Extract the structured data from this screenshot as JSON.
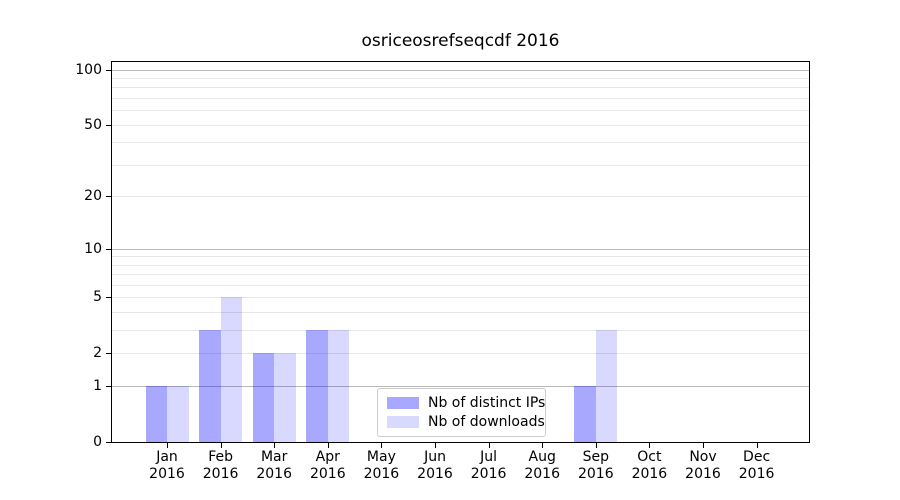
{
  "title": "osriceosrefseqcdf 2016",
  "chart_data": {
    "type": "bar",
    "title": "osriceosrefseqcdf 2016",
    "categories": [
      "Jan",
      "Feb",
      "Mar",
      "Apr",
      "May",
      "Jun",
      "Jul",
      "Aug",
      "Sep",
      "Oct",
      "Nov",
      "Dec"
    ],
    "category_year": "2016",
    "series": [
      {
        "name": "Nb of distinct IPs",
        "color": "rgba(0,0,255,0.34)",
        "values": [
          1,
          3,
          2,
          3,
          0,
          0,
          0,
          0,
          1,
          0,
          0,
          0
        ]
      },
      {
        "name": "Nb of downloads",
        "color": "rgba(0,0,255,0.15)",
        "values": [
          1,
          5,
          2,
          3,
          0,
          0,
          0,
          0,
          3,
          0,
          0,
          0
        ]
      }
    ],
    "yticks": [
      0,
      1,
      2,
      5,
      10,
      20,
      50,
      100
    ],
    "gridlines_major": [
      1,
      10,
      100
    ],
    "gridlines_minor": [
      2,
      3,
      4,
      5,
      6,
      7,
      8,
      9,
      20,
      30,
      40,
      50,
      60,
      70,
      80,
      90
    ],
    "scale": "log10(value+1)",
    "ylim": [
      0,
      110
    ],
    "xlabel": "",
    "ylabel": "",
    "grid": "horizontal",
    "legend_position": "lower-center-inside",
    "colors": {
      "grid_major": "#b9b9b9",
      "grid_minor": "#e7e7e7",
      "axis": "#000000",
      "legend_border": "#cccccc",
      "background": "#ffffff"
    }
  }
}
